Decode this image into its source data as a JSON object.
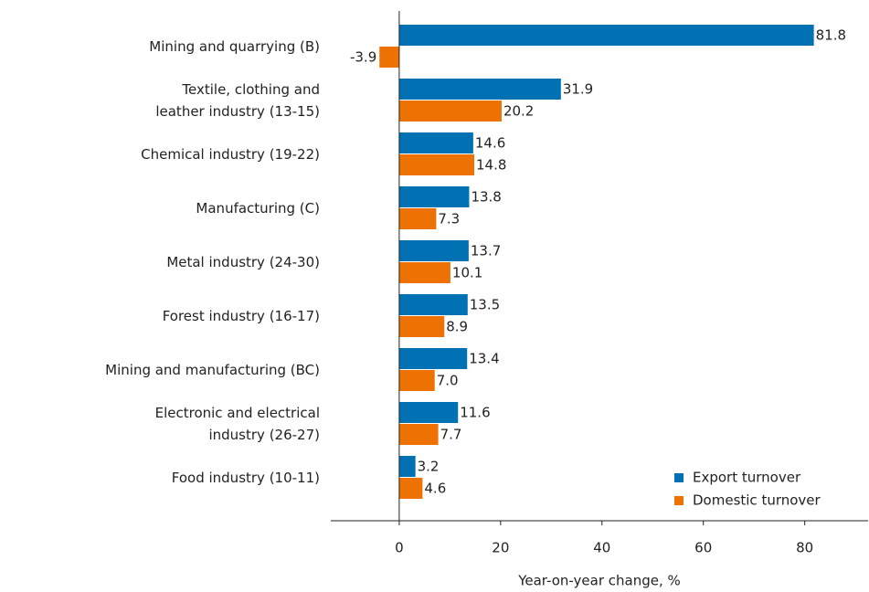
{
  "chart_data": {
    "type": "hbar",
    "categories": [
      "Mining and quarrying (B)",
      "Textile, clothing and\nleather industry (13-15)",
      "Chemical industry (19-22)",
      "Manufacturing (C)",
      "Metal industry (24-30)",
      "Forest industry (16-17)",
      "Mining and manufacturing (BC)",
      "Electronic and electrical\nindustry (26-27)",
      "Food industry (10-11)"
    ],
    "series": [
      {
        "name": "Export turnover",
        "color": "#0072b3",
        "values": [
          81.8,
          31.9,
          14.6,
          13.8,
          13.7,
          13.5,
          13.4,
          11.6,
          3.2
        ],
        "value_labels": [
          "81.8",
          "31.9",
          "14.6",
          "13.8",
          "13.7",
          "13.5",
          "13.4",
          "11.6",
          "3.2"
        ]
      },
      {
        "name": "Domestic turnover",
        "color": "#ee7203",
        "values": [
          -3.9,
          20.2,
          14.8,
          7.3,
          10.1,
          8.9,
          7.0,
          7.7,
          4.6
        ],
        "value_labels": [
          "-3.9",
          "20.2",
          "14.8",
          "7.3",
          "10.1",
          "8.9",
          "7.0",
          "7.7",
          "4.6"
        ]
      }
    ],
    "xlim": [
      -13.5,
      92.5
    ],
    "xticks": [
      0,
      20,
      40,
      60,
      80
    ],
    "xlabel": "Year-on-year change, %",
    "legend": "lower right"
  }
}
